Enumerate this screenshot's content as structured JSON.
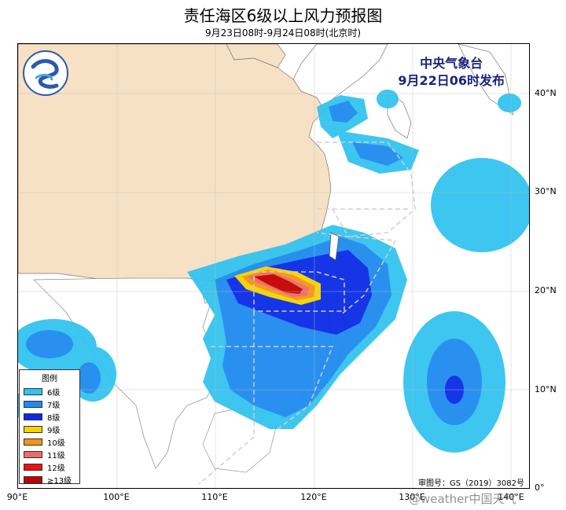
{
  "header": {
    "title": "责任海区6级以上风力预报图",
    "subtitle": "9月23日08时-9月24日08时(北京时)"
  },
  "agency": {
    "name": "中央气象台",
    "release": "9月22日06时发布"
  },
  "legend": {
    "title": "图例",
    "items": [
      {
        "label": "6级",
        "color": "#33c3f0"
      },
      {
        "label": "7级",
        "color": "#1e8bf0"
      },
      {
        "label": "8级",
        "color": "#0a2be6"
      },
      {
        "label": "9级",
        "color": "#f5d200"
      },
      {
        "label": "10级",
        "color": "#f29418"
      },
      {
        "label": "11级",
        "color": "#ef6a6a"
      },
      {
        "label": "12级",
        "color": "#ee1111"
      },
      {
        "label": "≥13级",
        "color": "#c40000"
      }
    ]
  },
  "axes": {
    "x_ticks": [
      "90°E",
      "100°E",
      "110°E",
      "120°E",
      "130°E",
      "140°E"
    ],
    "y_ticks": [
      "40°N",
      "30°N",
      "20°N",
      "10°N",
      "0°"
    ]
  },
  "footer": {
    "review_number": "审图号：GS（2019）3082号",
    "watermark": "@weather中国天气"
  }
}
